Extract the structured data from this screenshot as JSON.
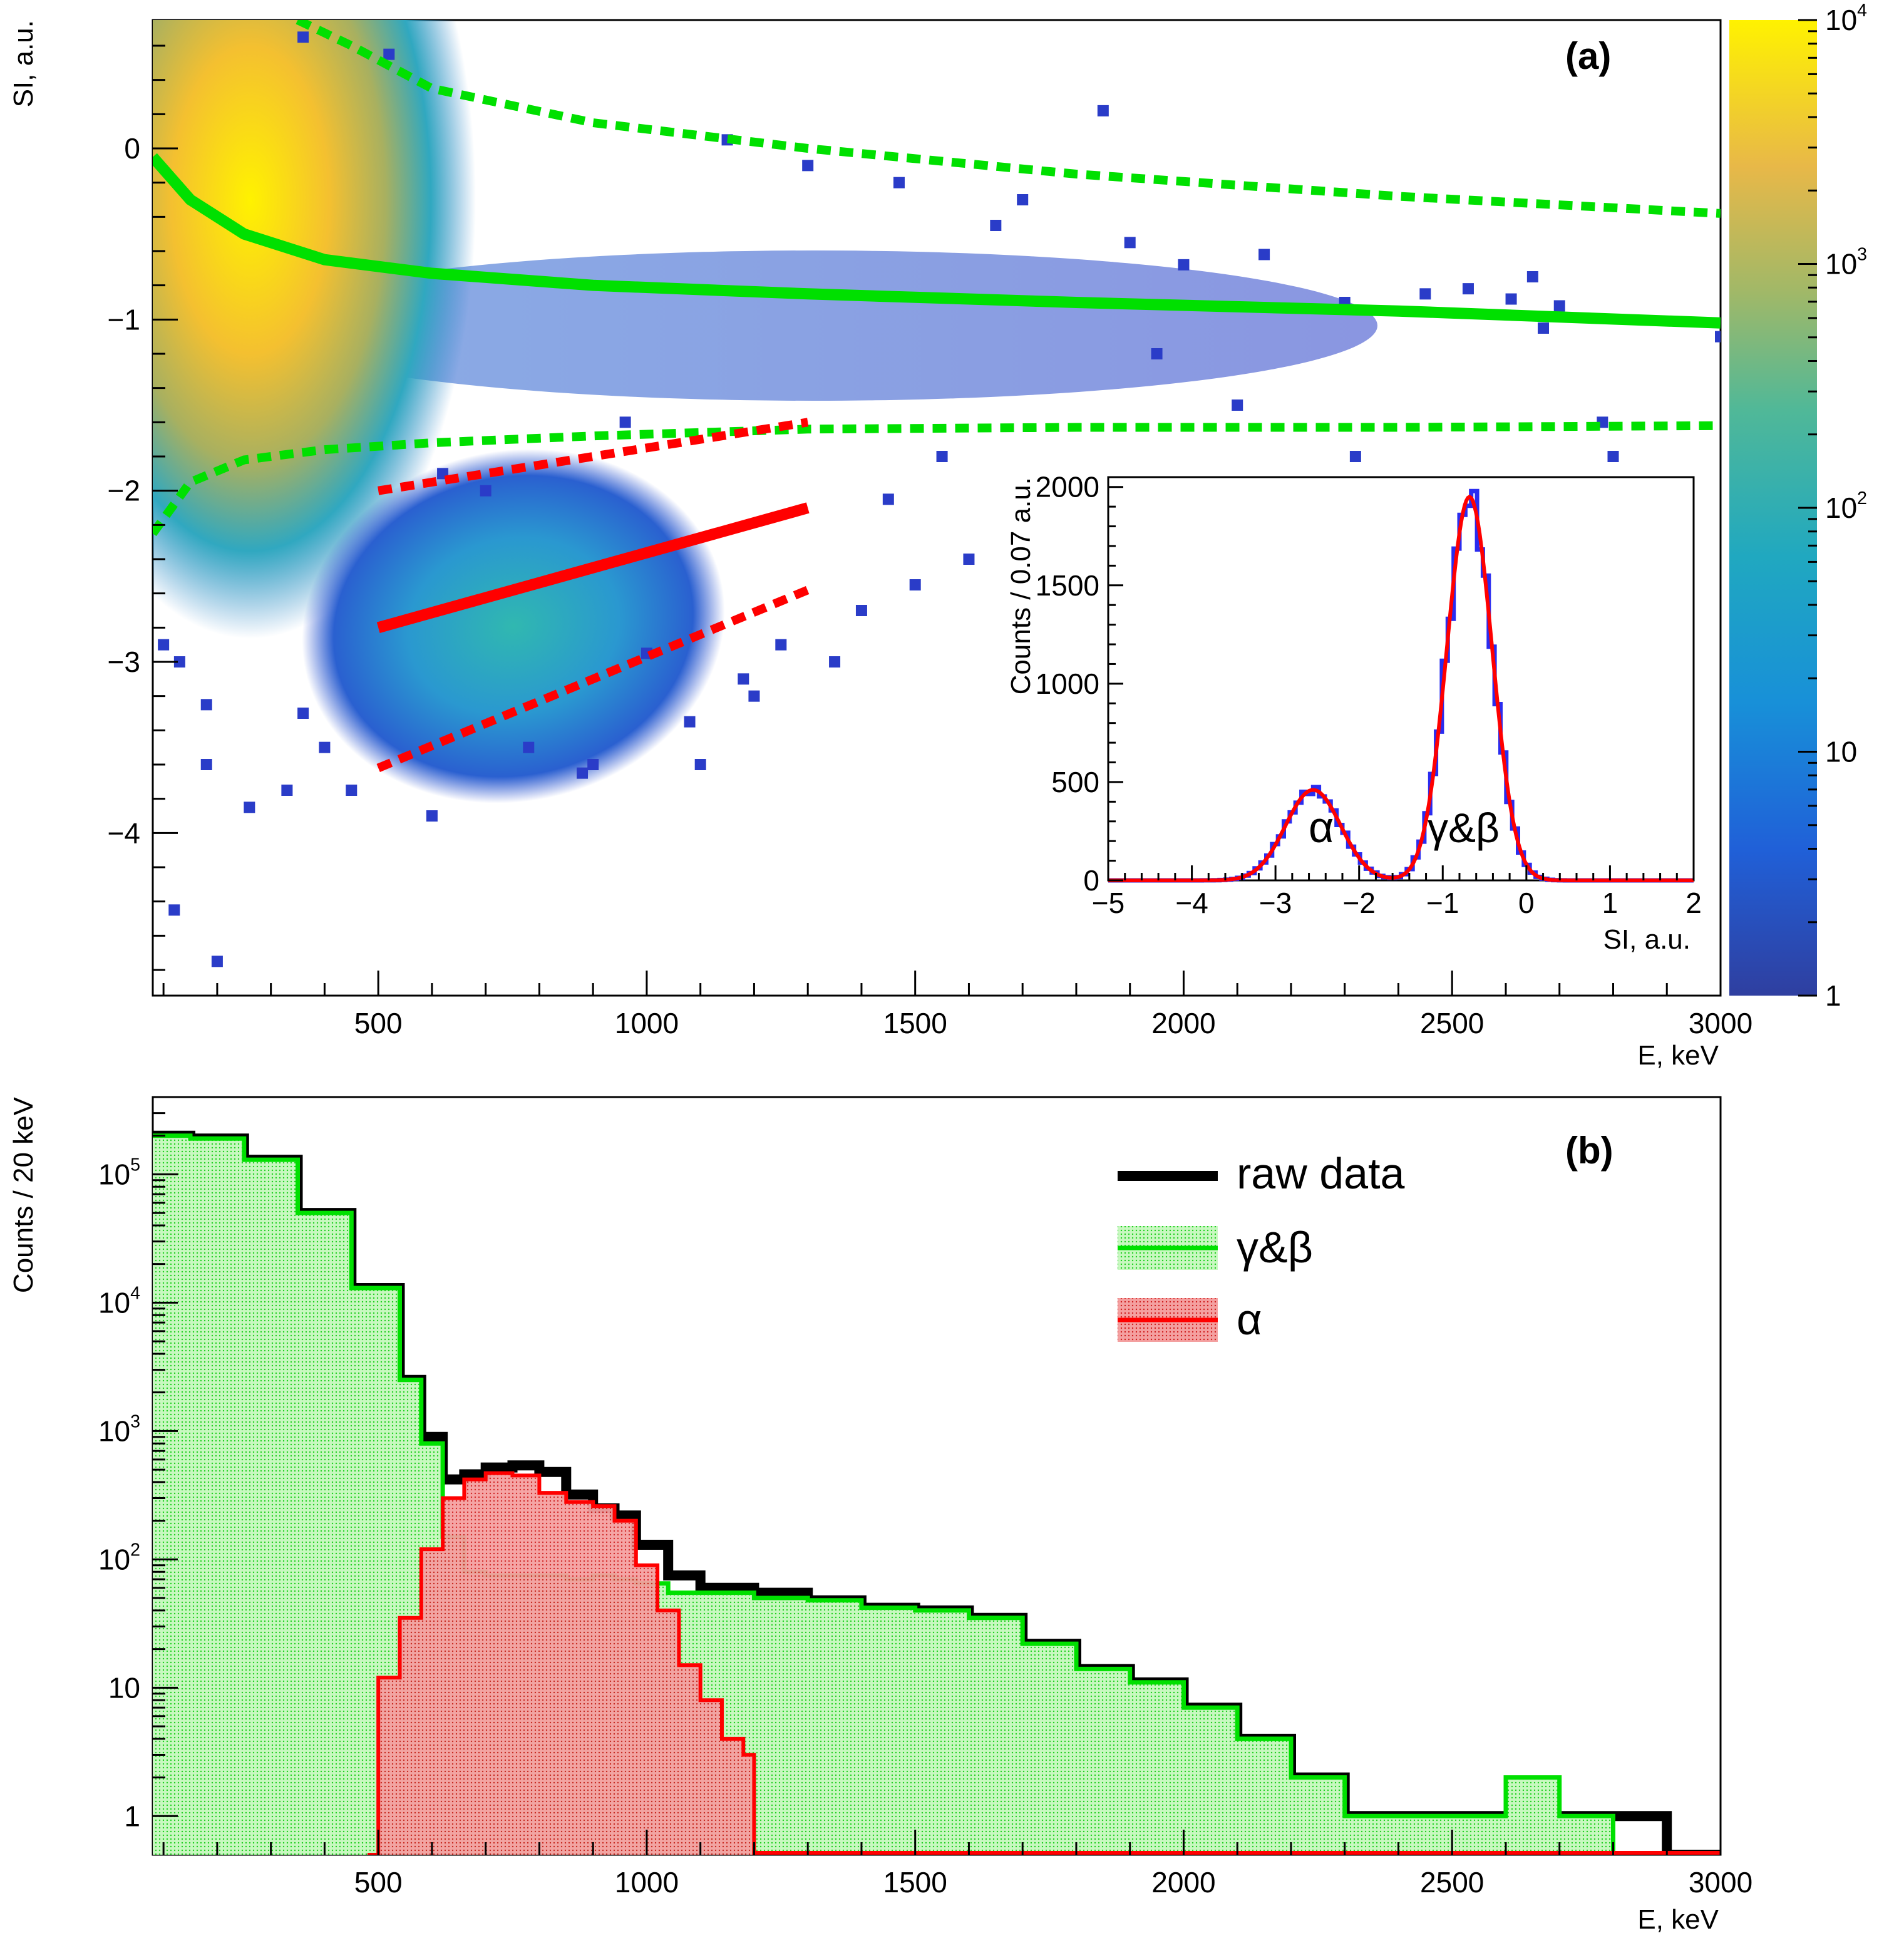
{
  "colors": {
    "gb_line": "#00e000",
    "gb_fill": "#a8f0a0",
    "alpha_line": "#ff0000",
    "alpha_fill": "#f08080",
    "raw_line": "#000000",
    "inset_hist": "#2a2cf0",
    "fit": "#ff0000",
    "colorbar_high": "#fff200",
    "colorbar_low": "#2f3fa0"
  },
  "chart_data": [
    {
      "panel": "(a)",
      "type": "heatmap",
      "xlabel": "E, keV",
      "ylabel": "SI, a.u.",
      "xlim": [
        80,
        3000
      ],
      "ylim": [
        -4.95,
        0.75
      ],
      "xticks": [
        "500",
        "1000",
        "1500",
        "2000",
        "2500",
        "3000"
      ],
      "yticks": [
        "0",
        "−1",
        "−2",
        "−3",
        "−4"
      ],
      "colorbar": {
        "scale": "log",
        "range": [
          1,
          10000
        ],
        "ticks": [
          "1",
          "10",
          "10",
          "10",
          "10"
        ],
        "tick_exponents": [
          "",
          "",
          "2",
          "3",
          "4"
        ]
      },
      "density_regions": [
        {
          "name": "γ&β",
          "e_center": 220,
          "si_center": -0.45,
          "peak_counts": 10000
        },
        {
          "name": "α",
          "e_center": 760,
          "si_center": -2.6,
          "peak_counts": 150
        }
      ],
      "curves": [
        {
          "name": "γ&β mean",
          "style": "solid",
          "color": "#00e000",
          "x": [
            80,
            150,
            250,
            400,
            600,
            900,
            1300,
            1800,
            2400,
            3000
          ],
          "y": [
            -0.05,
            -0.3,
            -0.5,
            -0.65,
            -0.73,
            -0.8,
            -0.85,
            -0.9,
            -0.95,
            -1.02
          ]
        },
        {
          "name": "γ&β upper",
          "style": "dashed",
          "color": "#00e000",
          "x": [
            350,
            450,
            600,
            900,
            1300,
            1800,
            2400,
            3000
          ],
          "y": [
            0.75,
            0.6,
            0.35,
            0.15,
            0.0,
            -0.15,
            -0.28,
            -0.38
          ]
        },
        {
          "name": "γ&β lower",
          "style": "dashed",
          "color": "#00e000",
          "x": [
            80,
            150,
            250,
            400,
            600,
            900,
            1300,
            1800,
            2400,
            3000
          ],
          "y": [
            -2.25,
            -1.95,
            -1.82,
            -1.76,
            -1.72,
            -1.68,
            -1.64,
            -1.63,
            -1.63,
            -1.62
          ]
        },
        {
          "name": "α mean",
          "style": "solid",
          "color": "#ff0000",
          "x": [
            500,
            1300
          ],
          "y": [
            -2.8,
            -2.1
          ]
        },
        {
          "name": "α upper",
          "style": "dashed",
          "color": "#ff0000",
          "x": [
            500,
            1300
          ],
          "y": [
            -2.0,
            -1.6
          ]
        },
        {
          "name": "α lower",
          "style": "dashed",
          "color": "#ff0000",
          "x": [
            500,
            1300
          ],
          "y": [
            -3.62,
            -2.58
          ]
        }
      ],
      "sparse_points": [
        [
          360,
          0.65
        ],
        [
          520,
          0.55
        ],
        [
          1850,
          0.22
        ],
        [
          1150,
          0.05
        ],
        [
          1300,
          -0.1
        ],
        [
          1470,
          -0.2
        ],
        [
          1700,
          -0.3
        ],
        [
          1650,
          -0.45
        ],
        [
          1900,
          -0.55
        ],
        [
          2000,
          -0.68
        ],
        [
          2150,
          -0.62
        ],
        [
          2300,
          -0.9
        ],
        [
          2450,
          -0.85
        ],
        [
          2530,
          -0.82
        ],
        [
          2610,
          -0.88
        ],
        [
          2650,
          -0.75
        ],
        [
          2700,
          -0.92
        ],
        [
          2670,
          -1.05
        ],
        [
          2780,
          -1.6
        ],
        [
          2800,
          -1.8
        ],
        [
          3000,
          -1.1
        ],
        [
          2320,
          -1.8
        ],
        [
          2100,
          -1.5
        ],
        [
          1950,
          -1.2
        ],
        [
          1550,
          -1.8
        ],
        [
          1600,
          -2.4
        ],
        [
          1500,
          -2.55
        ],
        [
          1400,
          -2.7
        ],
        [
          1350,
          -3.0
        ],
        [
          1250,
          -2.9
        ],
        [
          1200,
          -3.2
        ],
        [
          1100,
          -3.6
        ],
        [
          1450,
          -2.05
        ],
        [
          880,
          -3.65
        ],
        [
          780,
          -3.5
        ],
        [
          600,
          -3.9
        ],
        [
          450,
          -3.75
        ],
        [
          330,
          -3.75
        ],
        [
          260,
          -3.85
        ],
        [
          180,
          -3.6
        ],
        [
          120,
          -4.45
        ],
        [
          200,
          -4.75
        ],
        [
          130,
          -3.0
        ],
        [
          180,
          -3.25
        ],
        [
          100,
          -2.9
        ],
        [
          400,
          -3.5
        ],
        [
          360,
          -3.3
        ],
        [
          1000,
          -2.95
        ],
        [
          1080,
          -3.35
        ],
        [
          1180,
          -3.1
        ],
        [
          900,
          -3.6
        ],
        [
          700,
          -2.0
        ],
        [
          960,
          -1.6
        ],
        [
          620,
          -1.9
        ]
      ]
    },
    {
      "panel": "inset",
      "type": "line",
      "xlabel": "SI, a.u.",
      "ylabel": "Counts / 0.07 a.u.",
      "xlim": [
        -5,
        2
      ],
      "ylim": [
        0,
        2050
      ],
      "xticks": [
        "−5",
        "−4",
        "−3",
        "−2",
        "−1",
        "0",
        "1",
        "2"
      ],
      "yticks": [
        "0",
        "500",
        "1000",
        "1500",
        "2000"
      ],
      "annotations": [
        "α",
        "γ&β"
      ],
      "series": [
        {
          "component": "α",
          "amplitude": 460,
          "mean": -2.55,
          "sigma": 0.33
        },
        {
          "component": "γ&β",
          "amplitude": 1950,
          "mean": -0.68,
          "sigma": 0.27
        }
      ]
    },
    {
      "panel": "(b)",
      "type": "line",
      "yscale": "log",
      "xlabel": "E, keV",
      "ylabel": "Counts / 20 keV",
      "xlim": [
        80,
        3000
      ],
      "ylim": [
        0.5,
        400000
      ],
      "xticks": [
        "500",
        "1000",
        "1500",
        "2000",
        "2500",
        "3000"
      ],
      "yticks": [
        "1",
        "10",
        "10",
        "10",
        "10",
        "10"
      ],
      "ytick_exponents": [
        "",
        "",
        "2",
        "3",
        "4",
        "5"
      ],
      "legend": {
        "placement": "top-right",
        "entries": [
          "raw data",
          "γ&β",
          "α"
        ]
      },
      "series": [
        {
          "name": "raw data",
          "x": [
            80,
            150,
            250,
            350,
            450,
            540,
            580,
            620,
            660,
            700,
            750,
            800,
            850,
            900,
            940,
            980,
            1040,
            1100,
            1200,
            1300,
            1400,
            1500,
            1600,
            1700,
            1800,
            1900,
            2000,
            2100,
            2200,
            2300,
            2400,
            2500,
            2600,
            2700,
            2800,
            2900,
            3000
          ],
          "y": [
            200000,
            190000,
            130000,
            50000,
            13000,
            2500,
            900,
            420,
            460,
            520,
            540,
            480,
            320,
            250,
            220,
            130,
            75,
            60,
            55,
            48,
            42,
            40,
            35,
            22,
            14,
            11,
            7,
            4,
            2,
            1,
            1,
            1,
            1,
            1,
            1,
            0.5,
            0.5
          ]
        },
        {
          "name": "γ&β",
          "x": [
            80,
            150,
            250,
            350,
            450,
            540,
            580,
            620,
            660,
            700,
            750,
            800,
            850,
            900,
            940,
            980,
            1040,
            1100,
            1200,
            1300,
            1400,
            1500,
            1600,
            1700,
            1800,
            1900,
            2000,
            2100,
            2200,
            2300,
            2400,
            2500,
            2600,
            2700,
            2800,
            2900,
            3000
          ],
          "y": [
            200000,
            190000,
            130000,
            50000,
            13000,
            2500,
            800,
            150,
            80,
            75,
            75,
            75,
            70,
            75,
            70,
            65,
            55,
            55,
            50,
            48,
            42,
            40,
            35,
            22,
            14,
            11,
            7,
            4,
            2,
            1,
            1,
            1,
            2,
            1,
            0.5,
            0.5,
            0.5
          ]
        },
        {
          "name": "α",
          "x": [
            480,
            500,
            540,
            580,
            620,
            660,
            700,
            750,
            800,
            850,
            900,
            940,
            980,
            1020,
            1060,
            1100,
            1140,
            1180,
            1200,
            1240
          ],
          "y": [
            0.5,
            12,
            35,
            120,
            300,
            420,
            470,
            450,
            330,
            280,
            260,
            200,
            90,
            40,
            15,
            8,
            4,
            3,
            0.5,
            0.5
          ]
        }
      ]
    }
  ]
}
